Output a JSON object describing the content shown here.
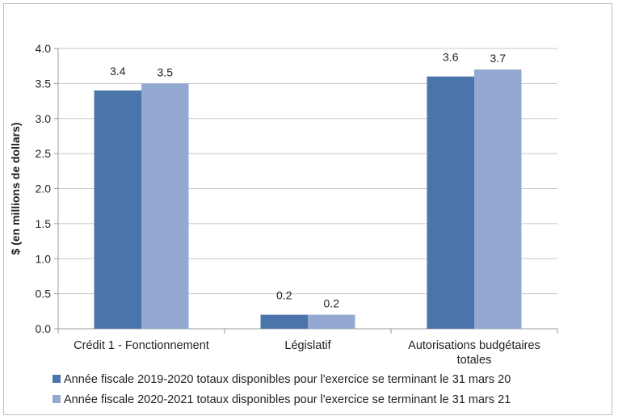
{
  "chart_data": {
    "type": "bar",
    "title": "",
    "xlabel": "",
    "ylabel": "$ (en millions de dollars)",
    "ylim": [
      0,
      4.0
    ],
    "yticks": [
      "0.0",
      "0.5",
      "1.0",
      "1.5",
      "2.0",
      "2.5",
      "3.0",
      "3.5",
      "4.0"
    ],
    "grid": true,
    "categories": [
      "Crédit 1 - Fonctionnement",
      "Législatif",
      "Autorisations budgétaires totales"
    ],
    "series": [
      {
        "name": "Année fiscale 2019-2020 totaux disponibles pour l'exercice se terminant le 31 mars 20",
        "values": [
          3.4,
          0.2,
          3.6
        ],
        "labels": [
          "3.4",
          "0.2",
          "3.6"
        ],
        "color": "#4a74aa"
      },
      {
        "name": "Année fiscale 2020-2021 totaux disponibles pour l'exercice se terminant le 31 mars 21",
        "values": [
          3.5,
          0.2,
          3.7
        ],
        "labels": [
          "3.5",
          "0.2",
          "3.7"
        ],
        "color": "#93a9d1"
      }
    ],
    "legend_position": "bottom"
  }
}
